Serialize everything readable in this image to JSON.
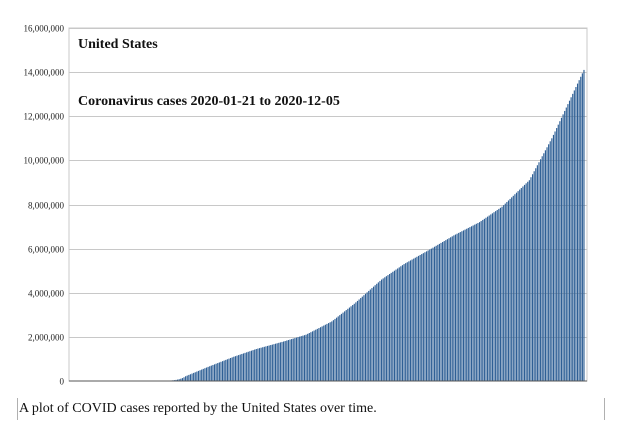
{
  "caption": "A plot of COVID cases reported by the United States over time.",
  "chart_data": {
    "type": "bar",
    "title": "United States",
    "subtitle": "Coronavirus cases 2020-01-21 to 2020-12-05",
    "x_start": "2020-01-21",
    "x_end": "2020-12-05",
    "ylim": [
      0,
      16000000
    ],
    "yticks": [
      0,
      2000000,
      4000000,
      6000000,
      8000000,
      10000000,
      12000000,
      14000000,
      16000000
    ],
    "ytick_labels": [
      "0",
      "2,000,000",
      "4,000,000",
      "6,000,000",
      "8,000,000",
      "10,000,000",
      "12,000,000",
      "14,000,000",
      "16,000,000"
    ],
    "grid": true,
    "bar_color": "#2e5f95",
    "keypoints": [
      {
        "date": "2020-01-21",
        "value": 1
      },
      {
        "date": "2020-03-15",
        "value": 3500
      },
      {
        "date": "2020-04-01",
        "value": 215000
      },
      {
        "date": "2020-04-15",
        "value": 640000
      },
      {
        "date": "2020-05-01",
        "value": 1100000
      },
      {
        "date": "2020-05-15",
        "value": 1450000
      },
      {
        "date": "2020-06-01",
        "value": 1790000
      },
      {
        "date": "2020-06-15",
        "value": 2100000
      },
      {
        "date": "2020-07-01",
        "value": 2700000
      },
      {
        "date": "2020-07-15",
        "value": 3500000
      },
      {
        "date": "2020-08-01",
        "value": 4600000
      },
      {
        "date": "2020-08-15",
        "value": 5300000
      },
      {
        "date": "2020-09-01",
        "value": 6000000
      },
      {
        "date": "2020-09-15",
        "value": 6600000
      },
      {
        "date": "2020-10-01",
        "value": 7200000
      },
      {
        "date": "2020-10-15",
        "value": 7900000
      },
      {
        "date": "2020-11-01",
        "value": 9100000
      },
      {
        "date": "2020-11-15",
        "value": 11000000
      },
      {
        "date": "2020-12-05",
        "value": 14100000
      }
    ]
  }
}
